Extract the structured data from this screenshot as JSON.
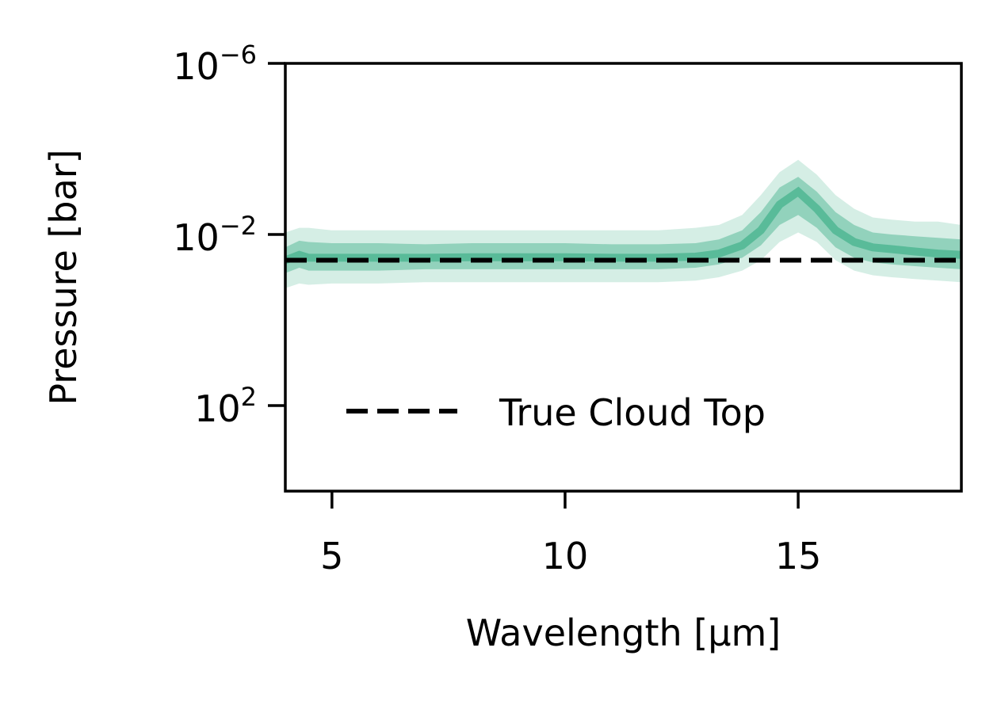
{
  "chart_data": {
    "type": "area",
    "xlabel": "Wavelength [μm]",
    "ylabel": "Pressure [bar]",
    "x_range": [
      4.0,
      18.5
    ],
    "y_range_bar": [
      10000,
      1e-06
    ],
    "y_scale": "log",
    "y_inverted": true,
    "x_ticks": [
      5,
      10,
      15
    ],
    "y_ticks": [
      {
        "value": 1e-06,
        "mantissa": "10",
        "exponent": "−6"
      },
      {
        "value": 0.01,
        "mantissa": "10",
        "exponent": "−2"
      },
      {
        "value": 100,
        "mantissa": "10",
        "exponent": "2"
      }
    ],
    "grid": false,
    "legend": {
      "placement": "lower-right",
      "entries": [
        {
          "label": "True Cloud Top",
          "style": "dashed",
          "color": "#000000"
        }
      ]
    },
    "cloud_top_pressure": 0.04,
    "band_color": "#41b08a",
    "band": {
      "x": [
        4.0,
        4.3,
        4.5,
        5.0,
        6.0,
        7.0,
        8.0,
        9.0,
        10.0,
        11.0,
        12.0,
        12.8,
        13.3,
        13.8,
        14.2,
        14.6,
        15.0,
        15.4,
        15.8,
        16.2,
        16.6,
        17.0,
        17.5,
        18.0,
        18.5
      ],
      "median": [
        0.04,
        0.03,
        0.035,
        0.035,
        0.035,
        0.035,
        0.034,
        0.034,
        0.034,
        0.035,
        0.035,
        0.033,
        0.028,
        0.018,
        0.008,
        0.002,
        0.001,
        0.0025,
        0.008,
        0.015,
        0.02,
        0.022,
        0.025,
        0.028,
        0.03
      ],
      "lower_1sigma": [
        0.08,
        0.06,
        0.07,
        0.07,
        0.07,
        0.065,
        0.065,
        0.065,
        0.065,
        0.065,
        0.065,
        0.06,
        0.05,
        0.035,
        0.018,
        0.006,
        0.0035,
        0.007,
        0.02,
        0.035,
        0.045,
        0.05,
        0.055,
        0.06,
        0.065
      ],
      "upper_1sigma": [
        0.02,
        0.014,
        0.015,
        0.016,
        0.016,
        0.017,
        0.016,
        0.016,
        0.016,
        0.017,
        0.017,
        0.016,
        0.013,
        0.008,
        0.003,
        0.0008,
        0.00045,
        0.001,
        0.003,
        0.006,
        0.009,
        0.01,
        0.011,
        0.012,
        0.013
      ],
      "lower_2sigma": [
        0.18,
        0.14,
        0.15,
        0.14,
        0.14,
        0.13,
        0.13,
        0.13,
        0.13,
        0.13,
        0.13,
        0.12,
        0.1,
        0.07,
        0.04,
        0.015,
        0.009,
        0.015,
        0.04,
        0.07,
        0.09,
        0.1,
        0.11,
        0.12,
        0.13
      ],
      "upper_2sigma": [
        0.009,
        0.007,
        0.007,
        0.008,
        0.008,
        0.008,
        0.008,
        0.008,
        0.008,
        0.008,
        0.008,
        0.007,
        0.006,
        0.0035,
        0.0012,
        0.00035,
        0.00018,
        0.0004,
        0.0012,
        0.0025,
        0.004,
        0.0045,
        0.005,
        0.005,
        0.006
      ]
    }
  }
}
